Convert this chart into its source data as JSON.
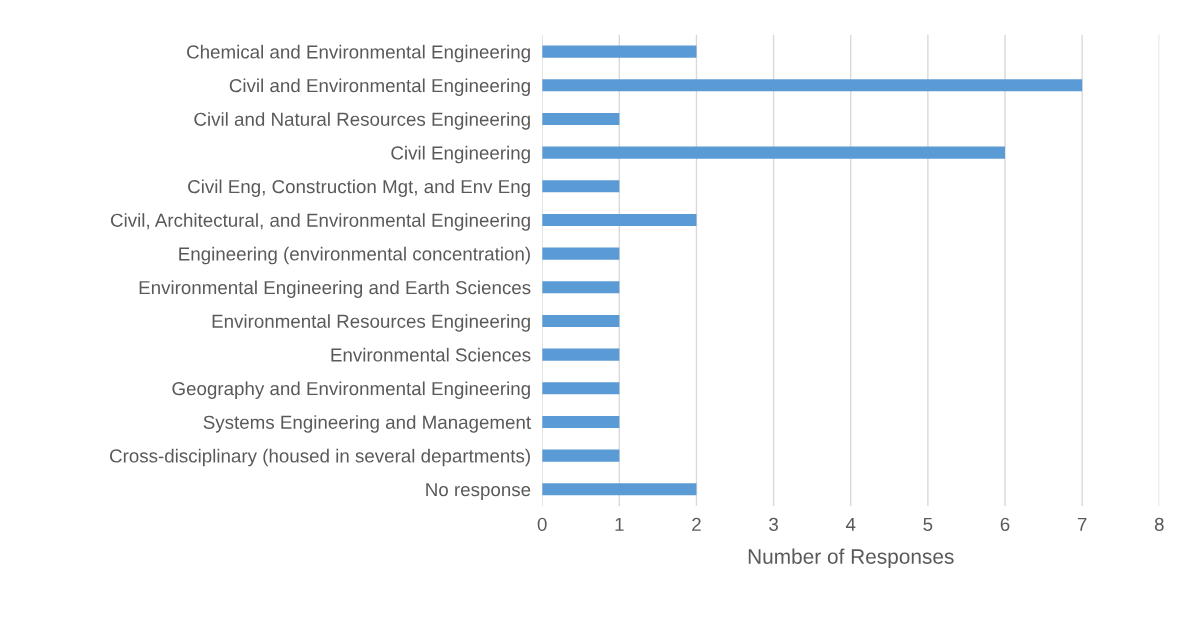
{
  "chart_data": {
    "type": "bar",
    "orientation": "horizontal",
    "xlabel": "Number of Responses",
    "categories": [
      "Chemical and Environmental Engineering",
      "Civil and Environmental Engineering",
      "Civil and Natural Resources Engineering",
      "Civil Engineering",
      "Civil Eng, Construction Mgt, and Env Eng",
      "Civil, Architectural, and Environmental Engineering",
      "Engineering (environmental concentration)",
      "Environmental Engineering and Earth Sciences",
      "Environmental Resources Engineering",
      "Environmental Sciences",
      "Geography and Environmental Engineering",
      "Systems Engineering and Management",
      "Cross-disciplinary (housed in several departments)",
      "No response"
    ],
    "values": [
      2,
      7,
      1,
      6,
      1,
      2,
      1,
      1,
      1,
      1,
      1,
      1,
      1,
      2
    ],
    "color": "#5b9bd5",
    "xlim": [
      0,
      8
    ],
    "xticks": [
      0,
      1,
      2,
      3,
      4,
      5,
      6,
      7,
      8
    ],
    "grid": "x",
    "legend": false
  }
}
